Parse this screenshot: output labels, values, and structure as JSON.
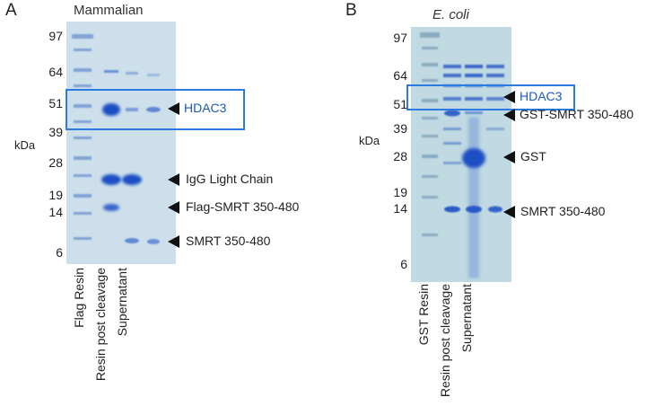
{
  "panel_a": {
    "letter": "A",
    "title": "Mammalian",
    "kda_label": "kDa",
    "markers": [
      "97",
      "64",
      "51",
      "39",
      "28",
      "19",
      "14",
      "6"
    ],
    "bands": [
      "HDAC3",
      "IgG Light Chain",
      "Flag-SMRT 350-480",
      "SMRT 350-480"
    ],
    "lanes": [
      "Flag Resin",
      "Resin post cleavage",
      "Supernatant"
    ]
  },
  "panel_b": {
    "letter": "B",
    "title": "E. coli",
    "kda_label": "kDa",
    "markers": [
      "97",
      "64",
      "51",
      "39",
      "28",
      "19",
      "14",
      "6"
    ],
    "bands": [
      "HDAC3",
      "GST-SMRT 350-480",
      "GST",
      "SMRT 350-480"
    ],
    "lanes": [
      "GST Resin",
      "Resin post cleavage",
      "Supernatant"
    ]
  },
  "colors": {
    "gel_bg": "#cfe2ec",
    "band": "#1f4fc4",
    "highlight": "#2b7be0",
    "hdac_text": "#1a5bb5"
  }
}
